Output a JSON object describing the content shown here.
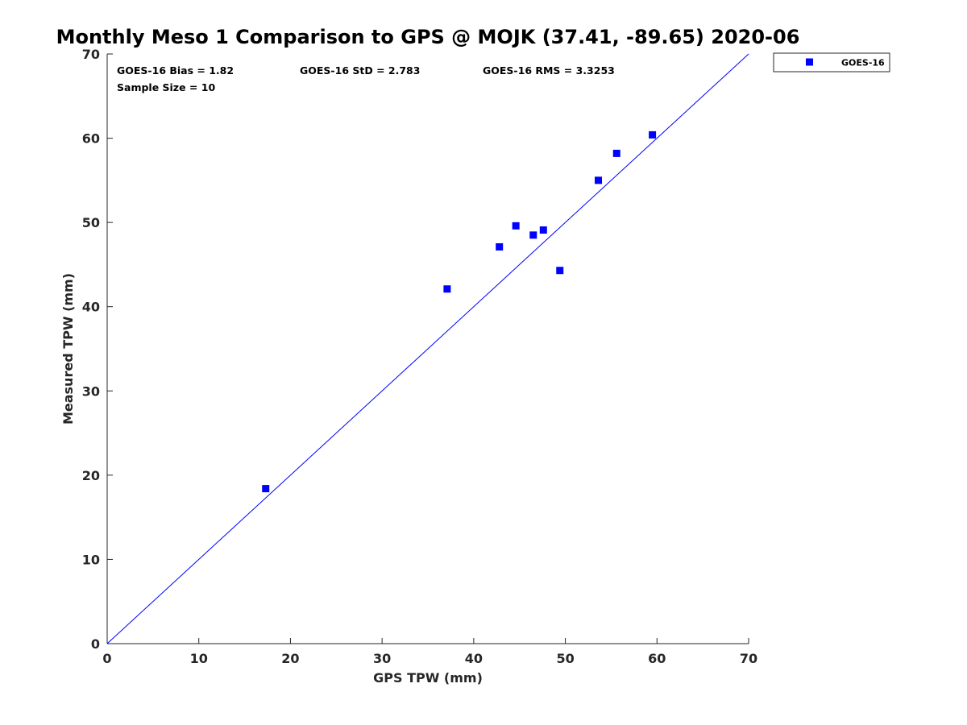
{
  "chart_data": {
    "type": "scatter",
    "title": "Monthly Meso 1 Comparison to GPS @ MOJK (37.41, -89.65) 2020-06",
    "xlabel": "GPS TPW (mm)",
    "ylabel": "Measured TPW (mm)",
    "xlim": [
      0,
      70
    ],
    "ylim": [
      0,
      70
    ],
    "x_ticks": [
      "0",
      "10",
      "20",
      "30",
      "40",
      "50",
      "60",
      "70"
    ],
    "y_ticks": [
      "0",
      "10",
      "20",
      "30",
      "40",
      "50",
      "60",
      "70"
    ],
    "grid": false,
    "legend_position": "outside-top-right",
    "annotations": {
      "bias": "GOES-16 Bias = 1.82",
      "std": "GOES-16 StD = 2.783",
      "rms": "GOES-16 RMS = 3.3253",
      "sample_size": "Sample Size = 10"
    },
    "reference_line": {
      "x": [
        0,
        70
      ],
      "y": [
        0,
        70
      ],
      "color": "#0000ff"
    },
    "series": [
      {
        "name": "GOES-16",
        "color": "#0000ff",
        "marker": "square",
        "points": [
          {
            "x": 17.3,
            "y": 18.4
          },
          {
            "x": 37.1,
            "y": 42.1
          },
          {
            "x": 42.8,
            "y": 47.1
          },
          {
            "x": 44.6,
            "y": 49.6
          },
          {
            "x": 46.5,
            "y": 48.5
          },
          {
            "x": 47.6,
            "y": 49.1
          },
          {
            "x": 49.4,
            "y": 44.3
          },
          {
            "x": 53.6,
            "y": 55.0
          },
          {
            "x": 55.6,
            "y": 58.2
          },
          {
            "x": 59.5,
            "y": 60.4
          }
        ]
      }
    ]
  }
}
